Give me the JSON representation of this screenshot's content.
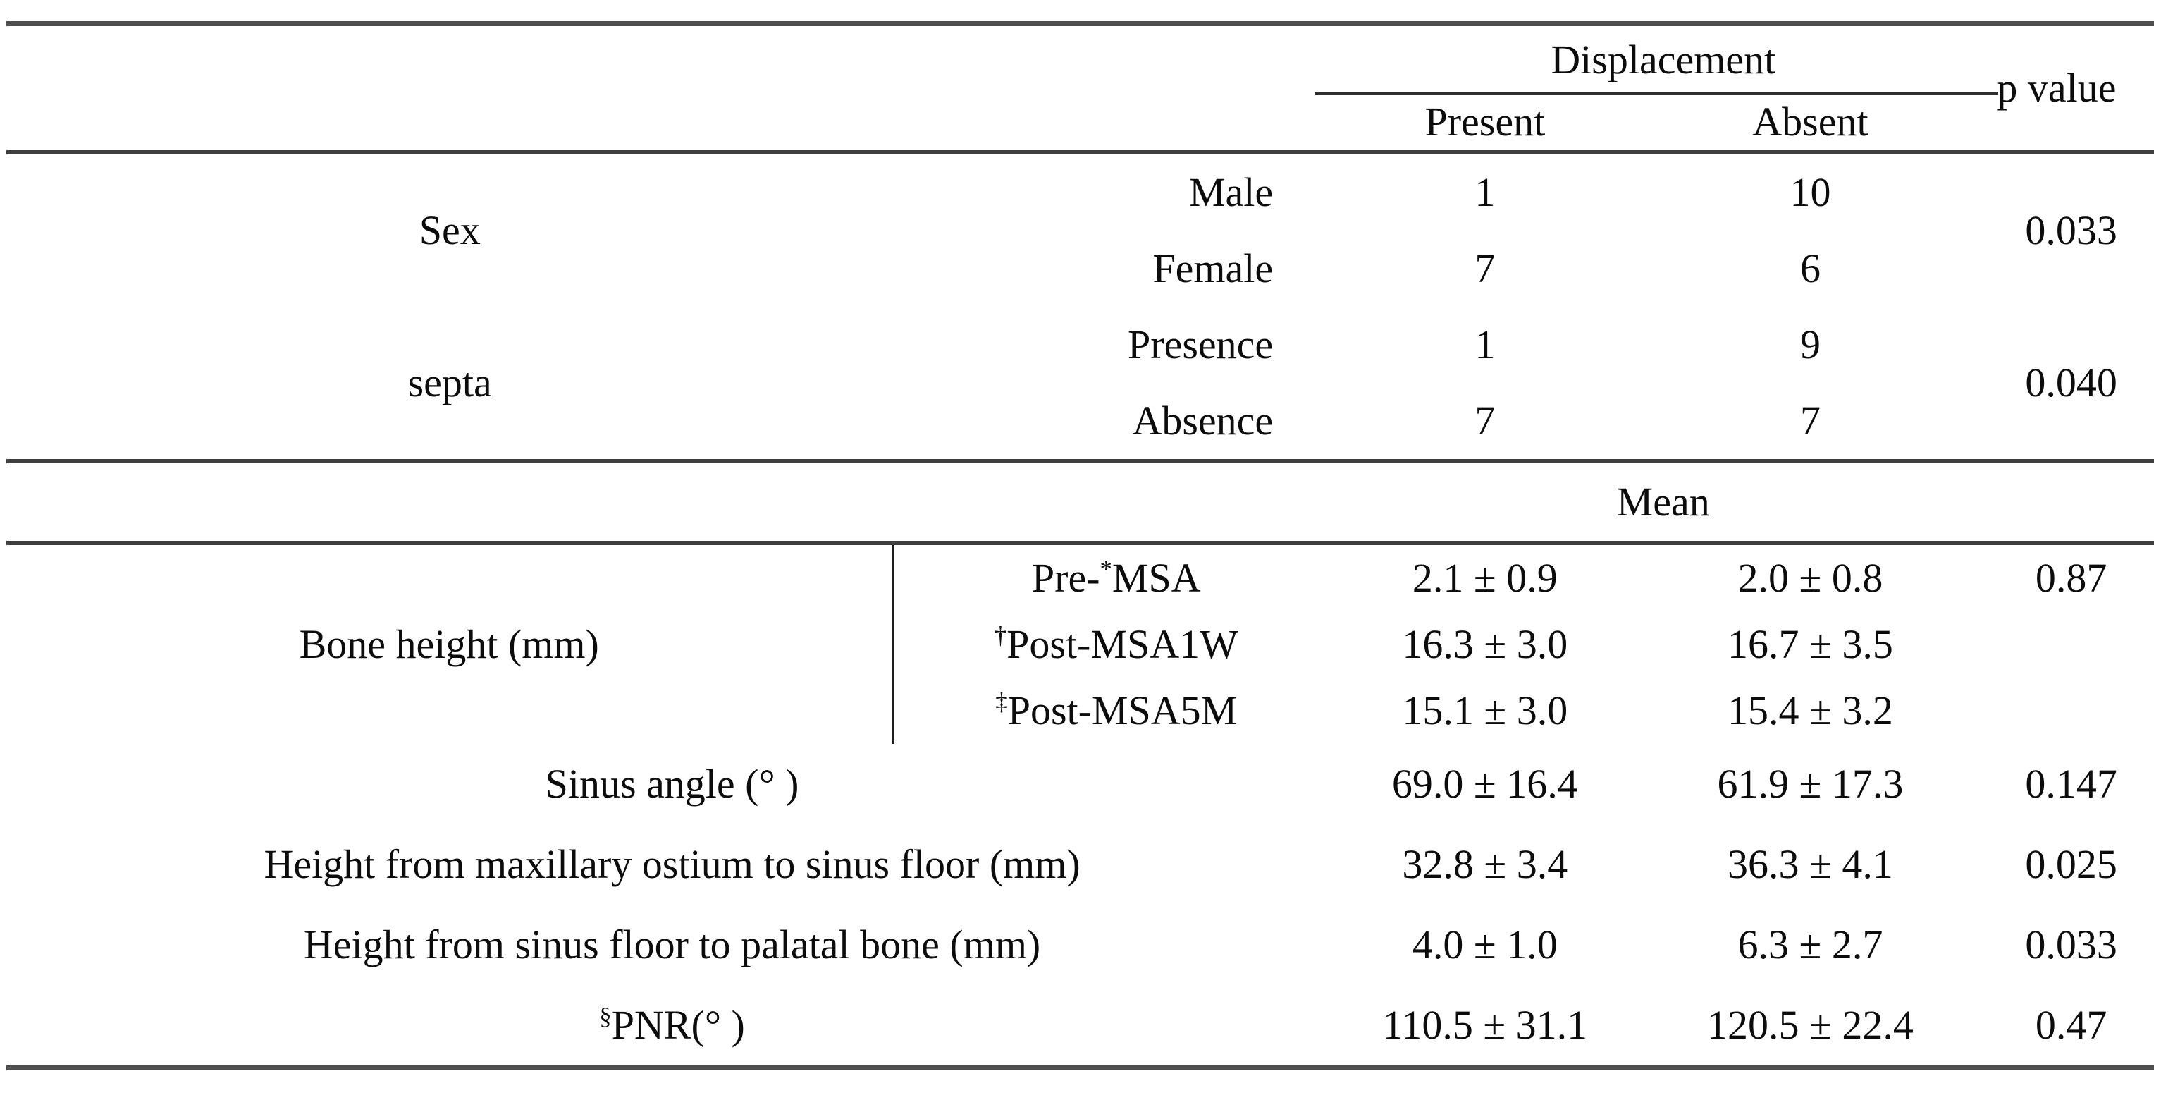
{
  "table": {
    "header": {
      "displacement": "Displacement",
      "present": "Present",
      "absent": "Absent",
      "p_value": "p value"
    },
    "mean_label": "Mean",
    "cat": [
      {
        "name": "Sex",
        "p": "0.033",
        "levels": [
          {
            "label": "Male",
            "present": "1",
            "absent": "10"
          },
          {
            "label": "Female",
            "present": "7",
            "absent": "6"
          }
        ]
      },
      {
        "name": "septa",
        "p": "0.040",
        "levels": [
          {
            "label": "Presence",
            "present": "1",
            "absent": "9"
          },
          {
            "label": "Absence",
            "present": "7",
            "absent": "7"
          }
        ]
      }
    ],
    "bone": {
      "name": "Bone height (mm)",
      "rows": [
        {
          "pre": "Pre-",
          "sup": "*",
          "post": "MSA",
          "present": "2.1 ± 0.9",
          "absent": "2.0 ± 0.8",
          "p": "0.87"
        },
        {
          "pre": "",
          "sup": "†",
          "post": "Post-MSA1W",
          "present": "16.3 ± 3.0",
          "absent": "16.7 ± 3.5",
          "p": ""
        },
        {
          "pre": "",
          "sup": "‡",
          "post": "Post-MSA5M",
          "present": "15.1 ± 3.0",
          "absent": "15.4 ± 3.2",
          "p": ""
        }
      ]
    },
    "measures": [
      {
        "sup": "",
        "label": "Sinus angle (° )",
        "present": "69.0 ± 16.4",
        "absent": "61.9 ± 17.3",
        "p": "0.147"
      },
      {
        "sup": "",
        "label": "Height from maxillary ostium to sinus floor (mm)",
        "present": "32.8 ± 3.4",
        "absent": "36.3 ± 4.1",
        "p": "0.025"
      },
      {
        "sup": "",
        "label": "Height from sinus floor to palatal bone (mm)",
        "present": "4.0 ± 1.0",
        "absent": "6.3 ± 2.7",
        "p": "0.033"
      },
      {
        "sup": "§",
        "label": "PNR(° )",
        "present": "110.5 ± 31.1",
        "absent": "120.5 ± 22.4",
        "p": "0.47"
      }
    ]
  }
}
